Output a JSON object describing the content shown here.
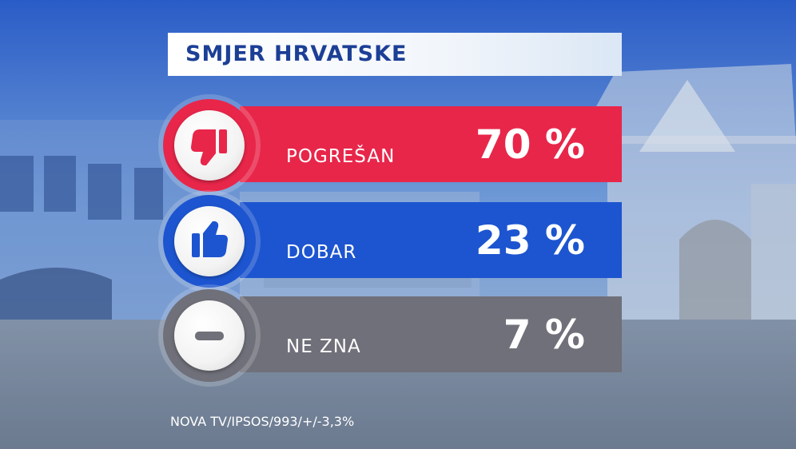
{
  "title": "SMJER HRVATSKE",
  "source": "NOVA TV/IPSOS/993/+/-3,3%",
  "chart_data": {
    "type": "bar",
    "title": "SMJER HRVATSKE",
    "categories": [
      "POGREŠAN",
      "DOBAR",
      "NE ZNA"
    ],
    "values": [
      70,
      23,
      7
    ],
    "value_labels": [
      "70 %",
      "23 %",
      "7 %"
    ],
    "colors": [
      "#e8264a",
      "#1d55d0",
      "#6f7079"
    ],
    "icons": [
      "thumbs-down-icon",
      "thumbs-up-icon",
      "minus-icon"
    ]
  }
}
